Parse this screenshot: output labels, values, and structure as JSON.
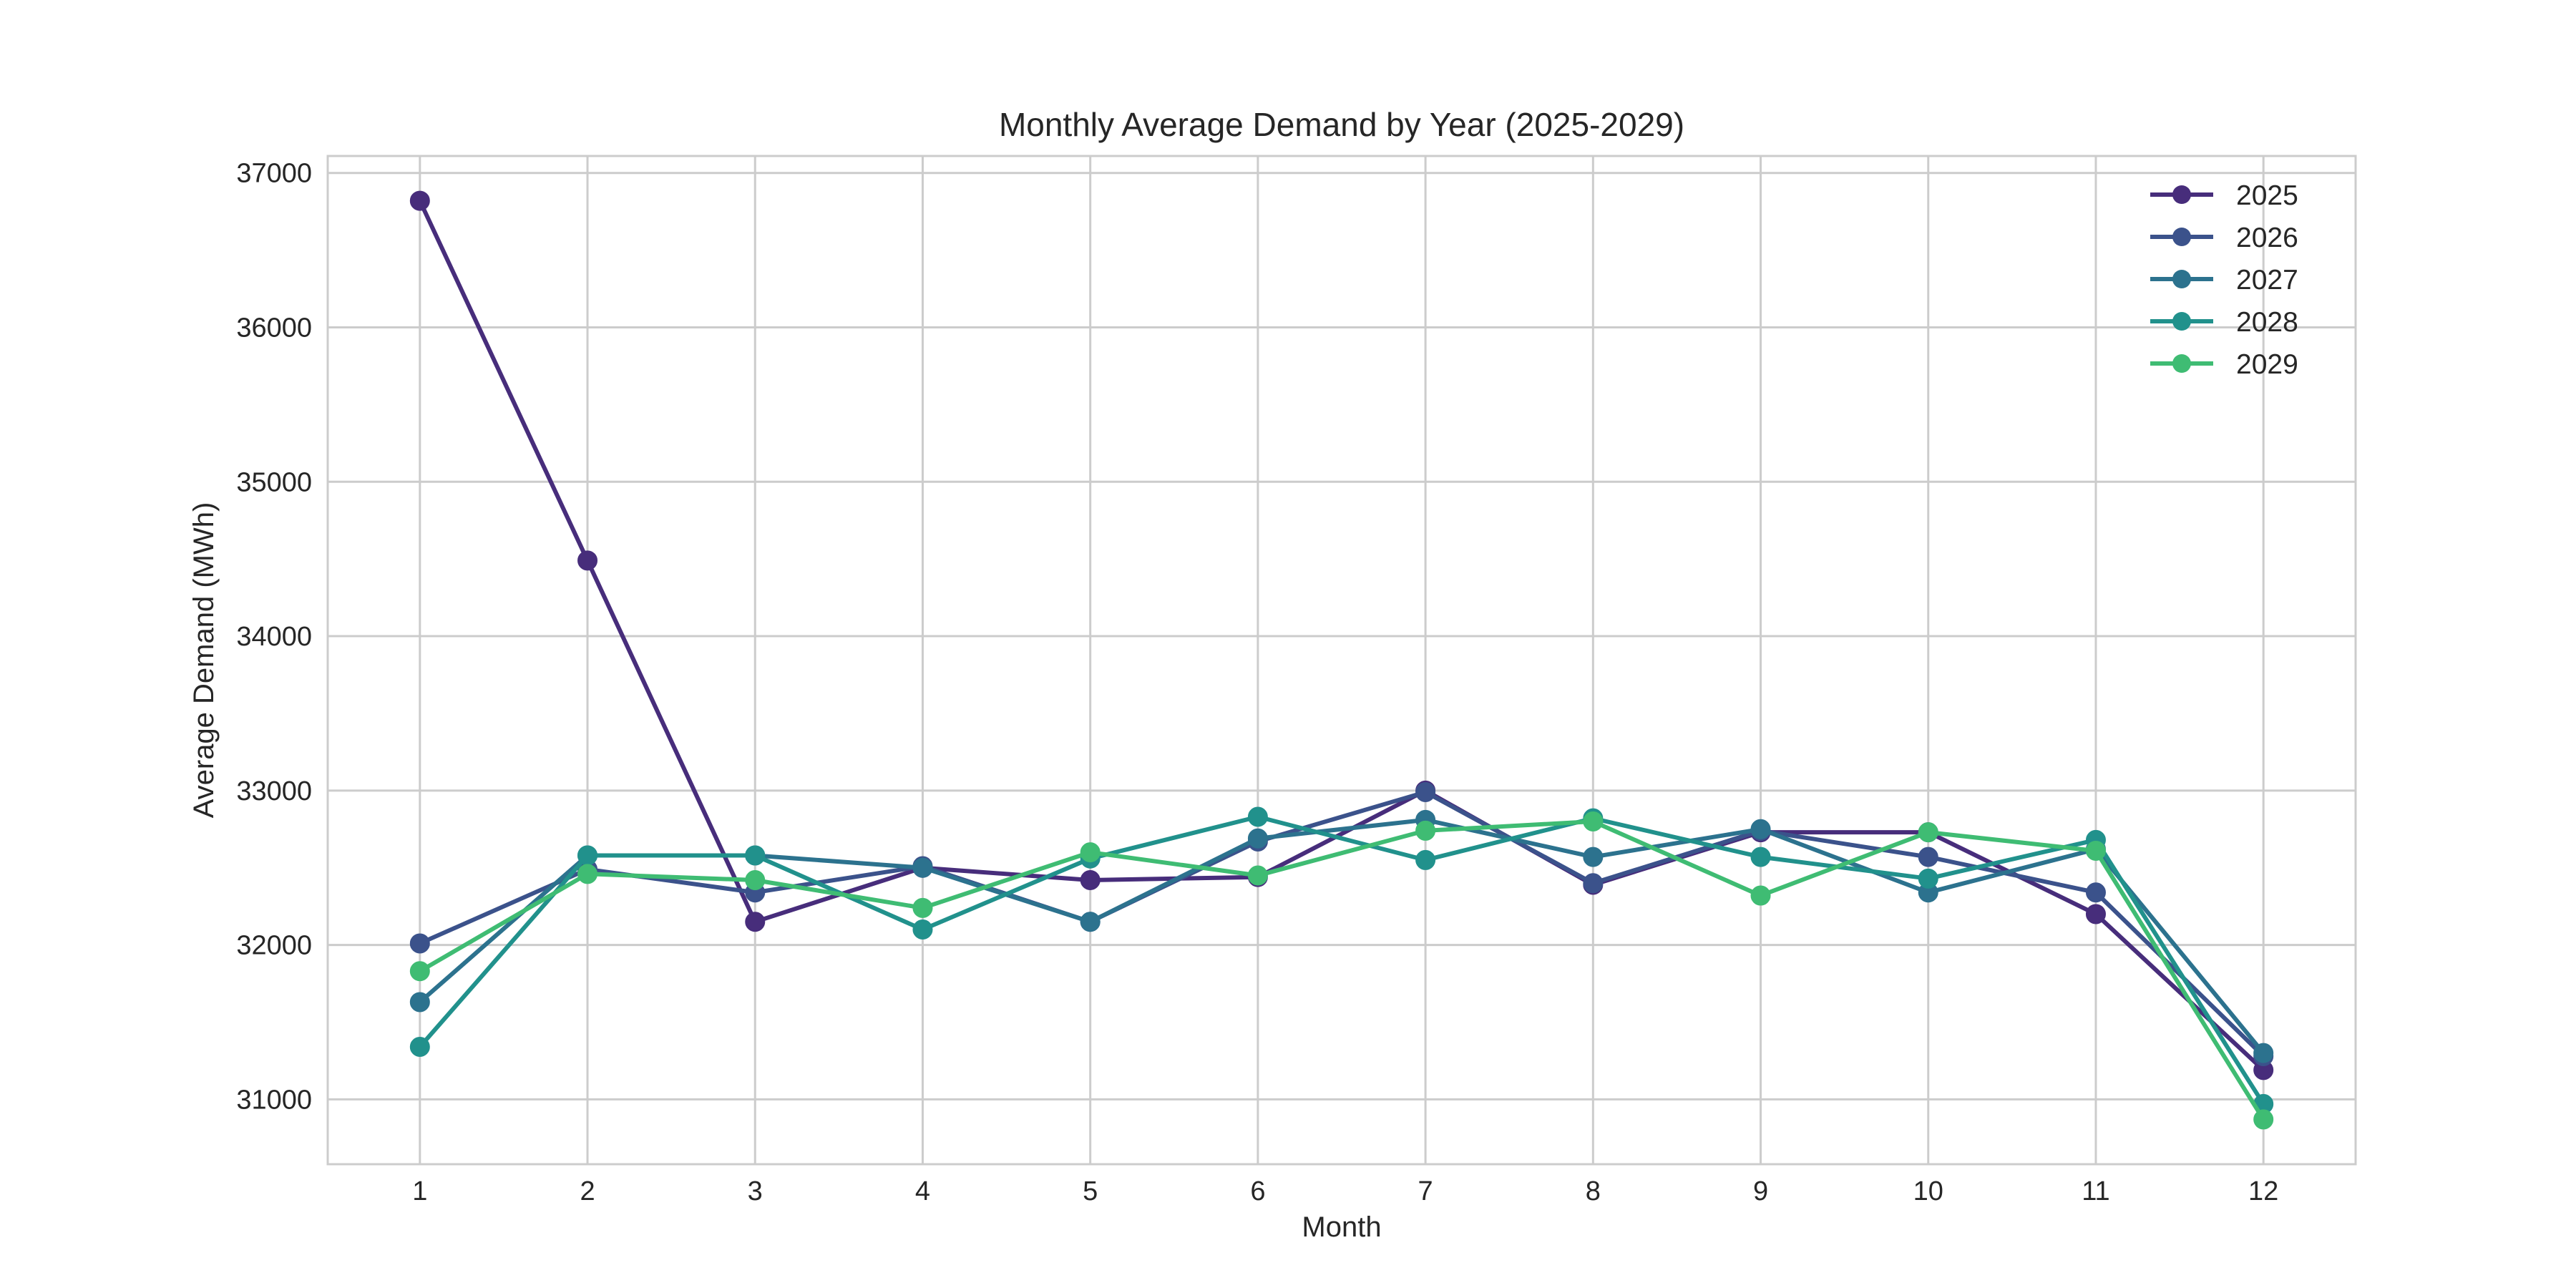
{
  "chart_data": {
    "type": "line",
    "title": "Monthly Average Demand by Year (2025-2029)",
    "xlabel": "Month",
    "ylabel": "Average Demand (MWh)",
    "x": [
      1,
      2,
      3,
      4,
      5,
      6,
      7,
      8,
      9,
      10,
      11,
      12
    ],
    "x_ticks": [
      "1",
      "2",
      "3",
      "4",
      "5",
      "6",
      "7",
      "8",
      "9",
      "10",
      "11",
      "12"
    ],
    "y_ticks": [
      "31000",
      "32000",
      "33000",
      "34000",
      "35000",
      "36000",
      "37000"
    ],
    "xlim": [
      0.45,
      12.55
    ],
    "ylim": [
      30580,
      37110
    ],
    "grid": true,
    "legend_position": "top-right",
    "markers": true,
    "series": [
      {
        "name": "2025",
        "color": "#472d7b",
        "values": [
          36820,
          34490,
          32150,
          32500,
          32420,
          32440,
          33000,
          32390,
          32730,
          32730,
          32200,
          31190
        ]
      },
      {
        "name": "2026",
        "color": "#3b528b",
        "values": [
          32010,
          32490,
          32340,
          32510,
          32150,
          32670,
          32990,
          32400,
          32740,
          32570,
          32340,
          31280
        ]
      },
      {
        "name": "2027",
        "color": "#2c728e",
        "values": [
          31630,
          32580,
          32580,
          32500,
          32150,
          32690,
          32810,
          32570,
          32750,
          32340,
          32620,
          31300
        ]
      },
      {
        "name": "2028",
        "color": "#21918c",
        "values": [
          31340,
          32580,
          32580,
          32100,
          32560,
          32830,
          32550,
          32820,
          32570,
          32430,
          32680,
          30970
        ]
      },
      {
        "name": "2029",
        "color": "#3fbc73",
        "values": [
          31830,
          32460,
          32420,
          32240,
          32600,
          32450,
          32740,
          32800,
          32320,
          32730,
          32610,
          30870
        ]
      }
    ]
  }
}
